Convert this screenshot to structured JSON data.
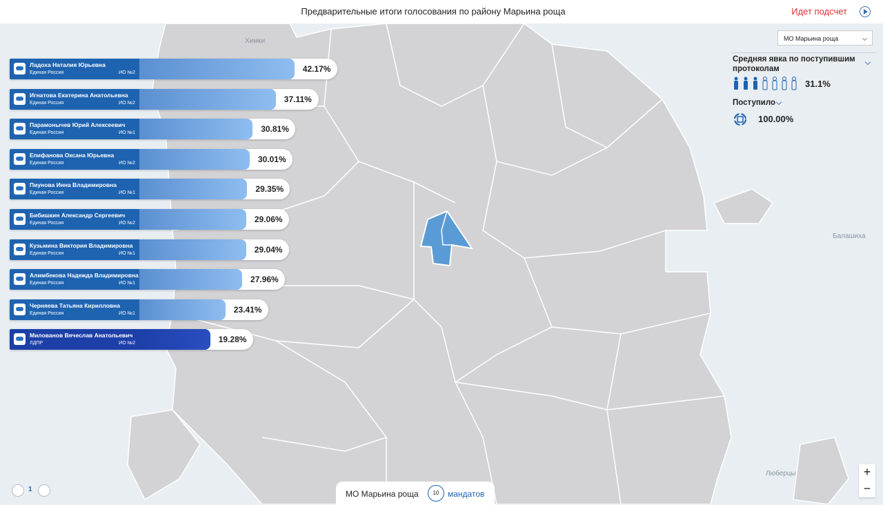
{
  "header": {
    "title": "Предварительные итоги голосования по району Марьина роща",
    "status": "Идет подсчет"
  },
  "filter": {
    "selected": "МО Марьина роща"
  },
  "turnout": {
    "label": "Средняя явка по поступившим протоколам",
    "value": "31.1%"
  },
  "received": {
    "label": "Поступило",
    "value": "100.00%"
  },
  "candidates": [
    {
      "name": "Ладоха Наталия Юрьевна",
      "party": "Единая Россия",
      "district": "ИО №2",
      "value": 42.17,
      "value_label": "42.17%",
      "color": "#8ebdf0"
    },
    {
      "name": "Игнатова Екатерина Анатольевна",
      "party": "Единая Россия",
      "district": "ИО №2",
      "value": 37.11,
      "value_label": "37.11%",
      "color": "#8ebdf0"
    },
    {
      "name": "Парамонычев Юрий Алексеевич",
      "party": "Единая Россия",
      "district": "ИО №1",
      "value": 30.81,
      "value_label": "30.81%",
      "color": "#8ebdf0"
    },
    {
      "name": "Епифанова Оксана Юрьевна",
      "party": "Единая Россия",
      "district": "ИО №2",
      "value": 30.01,
      "value_label": "30.01%",
      "color": "#8ebdf0"
    },
    {
      "name": "Пиунова Инна Владимировна",
      "party": "Единая Россия",
      "district": "ИО №1",
      "value": 29.35,
      "value_label": "29.35%",
      "color": "#8ebdf0"
    },
    {
      "name": "Бибишкин Александр Сергеевич",
      "party": "Единая Россия",
      "district": "ИО №2",
      "value": 29.06,
      "value_label": "29.06%",
      "color": "#8ebdf0"
    },
    {
      "name": "Кузьмина Виктория Владимировна",
      "party": "Единая Россия",
      "district": "ИО №1",
      "value": 29.04,
      "value_label": "29.04%",
      "color": "#8ebdf0"
    },
    {
      "name": "Алимбекова Надежда Владимировна",
      "party": "Единая Россия",
      "district": "ИО №1",
      "value": 27.96,
      "value_label": "27.96%",
      "color": "#8ebdf0"
    },
    {
      "name": "Черняева Татьяна Кирилловна",
      "party": "Единая Россия",
      "district": "ИО №1",
      "value": 23.41,
      "value_label": "23.41%",
      "color": "#8ebdf0"
    },
    {
      "name": "Милованов Вячеслав Анатольевич",
      "party": "ЛДПР",
      "district": "ИО №2",
      "value": 19.28,
      "value_label": "19.28%",
      "color": "#2a4ec0"
    }
  ],
  "pagination": {
    "page": "1"
  },
  "footer": {
    "district": "МО Марьина роща",
    "mandates": "10",
    "mandates_label": "мандатов"
  },
  "zoom": {
    "in": "+",
    "out": "−"
  },
  "map_labels": [
    "Химки",
    "Балашиха",
    "Люберцы"
  ]
}
